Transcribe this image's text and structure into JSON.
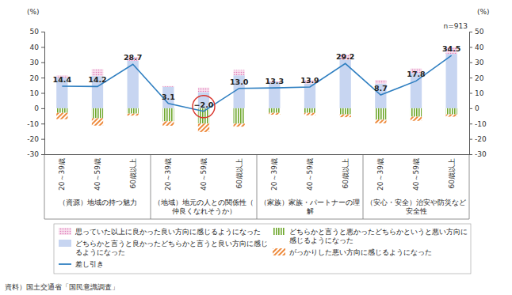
{
  "chart_data": {
    "type": "bar",
    "stacked": true,
    "grid": false,
    "legend": "bottom",
    "y_label": "(%)",
    "y2_label": "(%)",
    "annotation": "n=913",
    "source": "資料）国土交通省「国民意識調査」",
    "categories": [
      "20～39歳",
      "40～59歳",
      "60歳以上",
      "20～39歳",
      "40～59歳",
      "60歳以上",
      "20～39歳",
      "40～59歳",
      "60歳以上",
      "20～39歳",
      "40～59歳",
      "60歳以上"
    ],
    "group_labels": [
      "（資源）地域の持つ魅力",
      "（地域）地元の人との関係性（仲良くなれそうか）",
      "（家族）家族・パートナーの理解",
      "（安心・安全）治安や防災など安全性"
    ],
    "ylim": [
      -30,
      50
    ],
    "yticks": [
      -30,
      -20,
      -10,
      0,
      10,
      20,
      30,
      40,
      50
    ],
    "y2lim": [
      -30,
      50
    ],
    "y2ticks": [
      -30,
      -20,
      -10,
      0,
      10,
      20,
      30,
      40,
      50
    ],
    "series": [
      {
        "name": "どちらかと言うと良かったどちらかと言うと良い方向に感じるようになった",
        "type": "bar",
        "color": "#c7d5f1",
        "values": [
          20,
          21,
          31,
          14,
          10.5,
          21.5,
          17,
          16,
          31.5,
          16,
          23,
          35.5
        ]
      },
      {
        "name": "思っていた以上に良かった良い方向に感じるようになった",
        "type": "bar",
        "color": "#e07ab8",
        "values": [
          1.5,
          4.5,
          2.5,
          0.5,
          3,
          3.5,
          0.5,
          2.5,
          3.5,
          2.5,
          3,
          4.5
        ]
      },
      {
        "name": "どちらかと言うと悪かったどちらかというと悪い方向に感じるようになった",
        "type": "bar",
        "color": "#6fa82e",
        "values": [
          -3,
          -6.5,
          -3.5,
          -8.5,
          -10,
          -10,
          -3,
          -3,
          -4,
          -7.5,
          -5.5,
          -4
        ]
      },
      {
        "name": "がっかりした悪い方向に感じるようになった",
        "type": "bar",
        "color": "#ee8a3c",
        "values": [
          -4.1,
          -4.8,
          -1.3,
          -2.9,
          -5.5,
          -2,
          -1.2,
          -1.6,
          -1.8,
          -2.3,
          -2.7,
          -1.5
        ]
      },
      {
        "name": "差し引き",
        "type": "line",
        "color": "#2f7fc1",
        "data_labels": true,
        "values": [
          14.4,
          14.2,
          28.7,
          3.1,
          -2.0,
          13.0,
          13.3,
          13.9,
          29.2,
          8.7,
          17.8,
          34.5
        ],
        "value_labels": [
          "14.4",
          "14.2",
          "28.7",
          "3.1",
          "−2.0",
          "13.0",
          "13.3",
          "13.9",
          "29.2",
          "8.7",
          "17.8",
          "34.5"
        ]
      }
    ]
  }
}
